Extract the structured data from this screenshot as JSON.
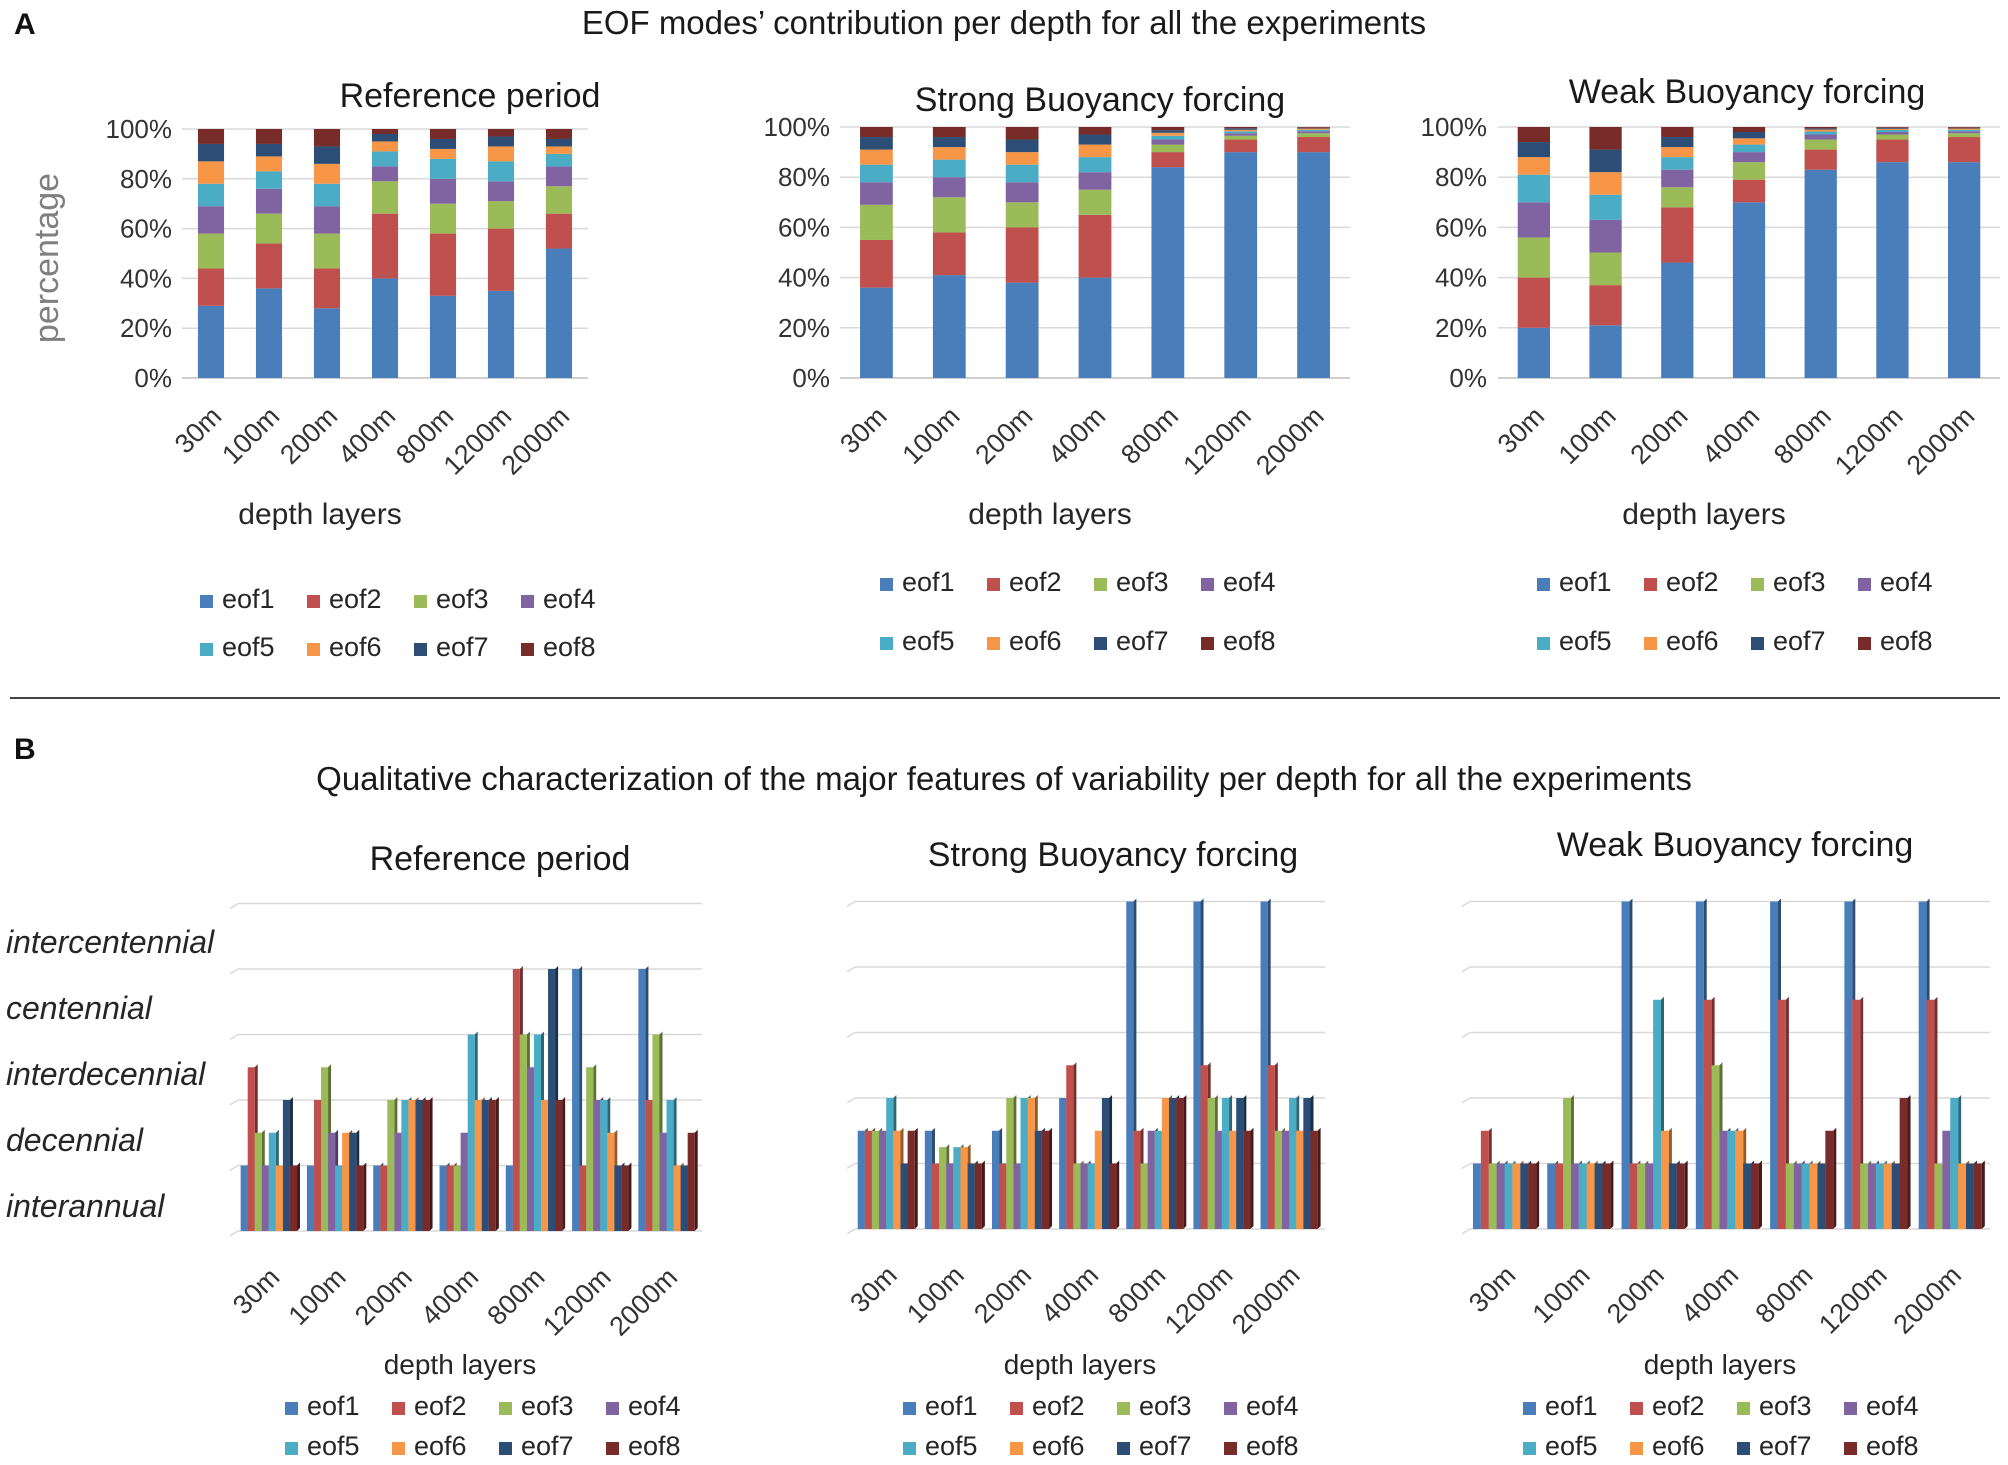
{
  "panel_a": {
    "letter": "A",
    "title": "EOF modes’ contribution per depth for all the experiments",
    "ylabel": "percentage",
    "xlabel": "depth layers"
  },
  "panel_b": {
    "letter": "B",
    "title": "Qualitative characterization of the major features of variability per depth for all the experiments",
    "xlabel": "depth layers"
  },
  "series_names": [
    "eof1",
    "eof2",
    "eof3",
    "eof4",
    "eof5",
    "eof6",
    "eof7",
    "eof8"
  ],
  "colors": [
    "#4a7ebb",
    "#c0504d",
    "#9bbb59",
    "#8064a2",
    "#4bacc6",
    "#f79646",
    "#2c4d75",
    "#772c2a"
  ],
  "chart_data": [
    {
      "panel": "A",
      "type": "bar",
      "stacked": true,
      "title": "Reference period",
      "categories": [
        "30m",
        "100m",
        "200m",
        "400m",
        "800m",
        "1200m",
        "2000m"
      ],
      "xlabel": "depth layers",
      "ylabel": "percentage",
      "ylim": [
        0,
        100
      ],
      "yticks": [
        "0%",
        "20%",
        "40%",
        "60%",
        "80%",
        "100%"
      ],
      "series": [
        {
          "name": "eof1",
          "values": [
            29,
            36,
            28,
            40,
            33,
            35,
            52
          ]
        },
        {
          "name": "eof2",
          "values": [
            15,
            18,
            16,
            26,
            25,
            25,
            14
          ]
        },
        {
          "name": "eof3",
          "values": [
            14,
            12,
            14,
            13,
            12,
            11,
            11
          ]
        },
        {
          "name": "eof4",
          "values": [
            11,
            10,
            11,
            6,
            10,
            8,
            8
          ]
        },
        {
          "name": "eof5",
          "values": [
            9,
            7,
            9,
            6,
            8,
            8,
            5
          ]
        },
        {
          "name": "eof6",
          "values": [
            9,
            6,
            8,
            4,
            4,
            6,
            3
          ]
        },
        {
          "name": "eof7",
          "values": [
            7,
            5,
            7,
            3,
            4,
            4,
            3
          ]
        },
        {
          "name": "eof8",
          "values": [
            6,
            6,
            7,
            2,
            4,
            3,
            4
          ]
        }
      ]
    },
    {
      "panel": "A",
      "type": "bar",
      "stacked": true,
      "title": "Strong Buoyancy forcing",
      "categories": [
        "30m",
        "100m",
        "200m",
        "400m",
        "800m",
        "1200m",
        "2000m"
      ],
      "xlabel": "depth layers",
      "ylim": [
        0,
        100
      ],
      "yticks": [
        "0%",
        "20%",
        "40%",
        "60%",
        "80%",
        "100%"
      ],
      "series": [
        {
          "name": "eof1",
          "values": [
            36,
            41,
            38,
            40,
            84,
            90,
            90
          ]
        },
        {
          "name": "eof2",
          "values": [
            19,
            17,
            22,
            25,
            6,
            5,
            6
          ]
        },
        {
          "name": "eof3",
          "values": [
            14,
            14,
            10,
            10,
            3,
            1.5,
            1.5
          ]
        },
        {
          "name": "eof4",
          "values": [
            9,
            8,
            8,
            7,
            2,
            1,
            0.8
          ]
        },
        {
          "name": "eof5",
          "values": [
            7,
            7,
            7,
            6,
            1.5,
            0.8,
            0.6
          ]
        },
        {
          "name": "eof6",
          "values": [
            6,
            5,
            5,
            5,
            1.2,
            0.6,
            0.5
          ]
        },
        {
          "name": "eof7",
          "values": [
            5,
            4,
            5,
            4,
            1,
            0.6,
            0.3
          ]
        },
        {
          "name": "eof8",
          "values": [
            4,
            4,
            5,
            3,
            1.3,
            0.5,
            0.3
          ]
        }
      ]
    },
    {
      "panel": "A",
      "type": "bar",
      "stacked": true,
      "title": "Weak Buoyancy forcing",
      "categories": [
        "30m",
        "100m",
        "200m",
        "400m",
        "800m",
        "1200m",
        "2000m"
      ],
      "xlabel": "depth layers",
      "ylim": [
        0,
        100
      ],
      "yticks": [
        "0%",
        "20%",
        "40%",
        "60%",
        "80%",
        "100%"
      ],
      "series": [
        {
          "name": "eof1",
          "values": [
            20,
            21,
            46,
            70,
            83,
            86,
            86
          ]
        },
        {
          "name": "eof2",
          "values": [
            20,
            16,
            22,
            9,
            8,
            9,
            10
          ]
        },
        {
          "name": "eof3",
          "values": [
            16,
            13,
            8,
            7,
            4,
            2,
            1.5
          ]
        },
        {
          "name": "eof4",
          "values": [
            14,
            13,
            7,
            4,
            2,
            1,
            0.8
          ]
        },
        {
          "name": "eof5",
          "values": [
            11,
            10,
            5,
            3,
            1.2,
            0.8,
            0.6
          ]
        },
        {
          "name": "eof6",
          "values": [
            7,
            9,
            4,
            2.5,
            0.8,
            0.5,
            0.5
          ]
        },
        {
          "name": "eof7",
          "values": [
            6,
            9,
            4,
            2.5,
            0.5,
            0.4,
            0.3
          ]
        },
        {
          "name": "eof8",
          "values": [
            6,
            9,
            4,
            2,
            0.5,
            0.3,
            0.3
          ]
        }
      ]
    },
    {
      "panel": "B",
      "type": "bar",
      "stacked": false,
      "title": "Reference period",
      "categories": [
        "30m",
        "100m",
        "200m",
        "400m",
        "800m",
        "1200m",
        "2000m"
      ],
      "xlabel": "depth layers",
      "ylim": [
        0,
        5
      ],
      "ytick_labels": [
        "interannual",
        "decennial",
        "interdecennial",
        "centennial",
        "intercentennial"
      ],
      "series": [
        {
          "name": "eof1",
          "values": [
            1,
            1,
            1,
            1,
            1,
            4,
            4
          ]
        },
        {
          "name": "eof2",
          "values": [
            2.5,
            2,
            1,
            1,
            4,
            1,
            2
          ]
        },
        {
          "name": "eof3",
          "values": [
            1.5,
            2.5,
            2,
            1,
            3,
            2.5,
            3
          ]
        },
        {
          "name": "eof4",
          "values": [
            1,
            1.5,
            1.5,
            1.5,
            2.5,
            2,
            1.5
          ]
        },
        {
          "name": "eof5",
          "values": [
            1.5,
            1,
            2,
            3,
            3,
            2,
            2
          ]
        },
        {
          "name": "eof6",
          "values": [
            1,
            1.5,
            2,
            2,
            2,
            1.5,
            1
          ]
        },
        {
          "name": "eof7",
          "values": [
            2,
            1.5,
            2,
            2,
            4,
            1,
            1
          ]
        },
        {
          "name": "eof8",
          "values": [
            1,
            1,
            2,
            2,
            2,
            1,
            1.5
          ]
        }
      ]
    },
    {
      "panel": "B",
      "type": "bar",
      "stacked": false,
      "title": "Strong Buoyancy forcing",
      "categories": [
        "30m",
        "100m",
        "200m",
        "400m",
        "800m",
        "1200m",
        "2000m"
      ],
      "xlabel": "depth layers",
      "ylim": [
        0,
        5
      ],
      "series": [
        {
          "name": "eof1",
          "values": [
            1.5,
            1.5,
            1.5,
            2,
            5,
            5,
            5
          ]
        },
        {
          "name": "eof2",
          "values": [
            1.5,
            1,
            1,
            2.5,
            1.5,
            2.5,
            2.5
          ]
        },
        {
          "name": "eof3",
          "values": [
            1.5,
            1.25,
            2,
            1,
            1,
            2,
            1.5
          ]
        },
        {
          "name": "eof4",
          "values": [
            1.5,
            1,
            1,
            1,
            1.5,
            1.5,
            1.5
          ]
        },
        {
          "name": "eof5",
          "values": [
            2,
            1.25,
            2,
            1,
            1.5,
            2,
            2
          ]
        },
        {
          "name": "eof6",
          "values": [
            1.5,
            1.25,
            2,
            1.5,
            2,
            1.5,
            1.5
          ]
        },
        {
          "name": "eof7",
          "values": [
            1,
            1,
            1.5,
            2,
            2,
            2,
            2
          ]
        },
        {
          "name": "eof8",
          "values": [
            1.5,
            1,
            1.5,
            1,
            2,
            1.5,
            1.5
          ]
        }
      ]
    },
    {
      "panel": "B",
      "type": "bar",
      "stacked": false,
      "title": "Weak Buoyancy forcing",
      "categories": [
        "30m",
        "100m",
        "200m",
        "400m",
        "800m",
        "1200m",
        "2000m"
      ],
      "xlabel": "depth layers",
      "ylim": [
        0,
        5
      ],
      "series": [
        {
          "name": "eof1",
          "values": [
            1,
            1,
            5,
            5,
            5,
            5,
            5
          ]
        },
        {
          "name": "eof2",
          "values": [
            1.5,
            1,
            1,
            3.5,
            3.5,
            3.5,
            3.5
          ]
        },
        {
          "name": "eof3",
          "values": [
            1,
            2,
            1,
            2.5,
            1,
            1,
            1
          ]
        },
        {
          "name": "eof4",
          "values": [
            1,
            1,
            1,
            1.5,
            1,
            1,
            1.5
          ]
        },
        {
          "name": "eof5",
          "values": [
            1,
            1,
            3.5,
            1.5,
            1,
            1,
            2
          ]
        },
        {
          "name": "eof6",
          "values": [
            1,
            1,
            1.5,
            1.5,
            1,
            1,
            1
          ]
        },
        {
          "name": "eof7",
          "values": [
            1,
            1,
            1,
            1,
            1,
            1,
            1
          ]
        },
        {
          "name": "eof8",
          "values": [
            1,
            1,
            1,
            1,
            1.5,
            2,
            1
          ]
        }
      ]
    }
  ]
}
